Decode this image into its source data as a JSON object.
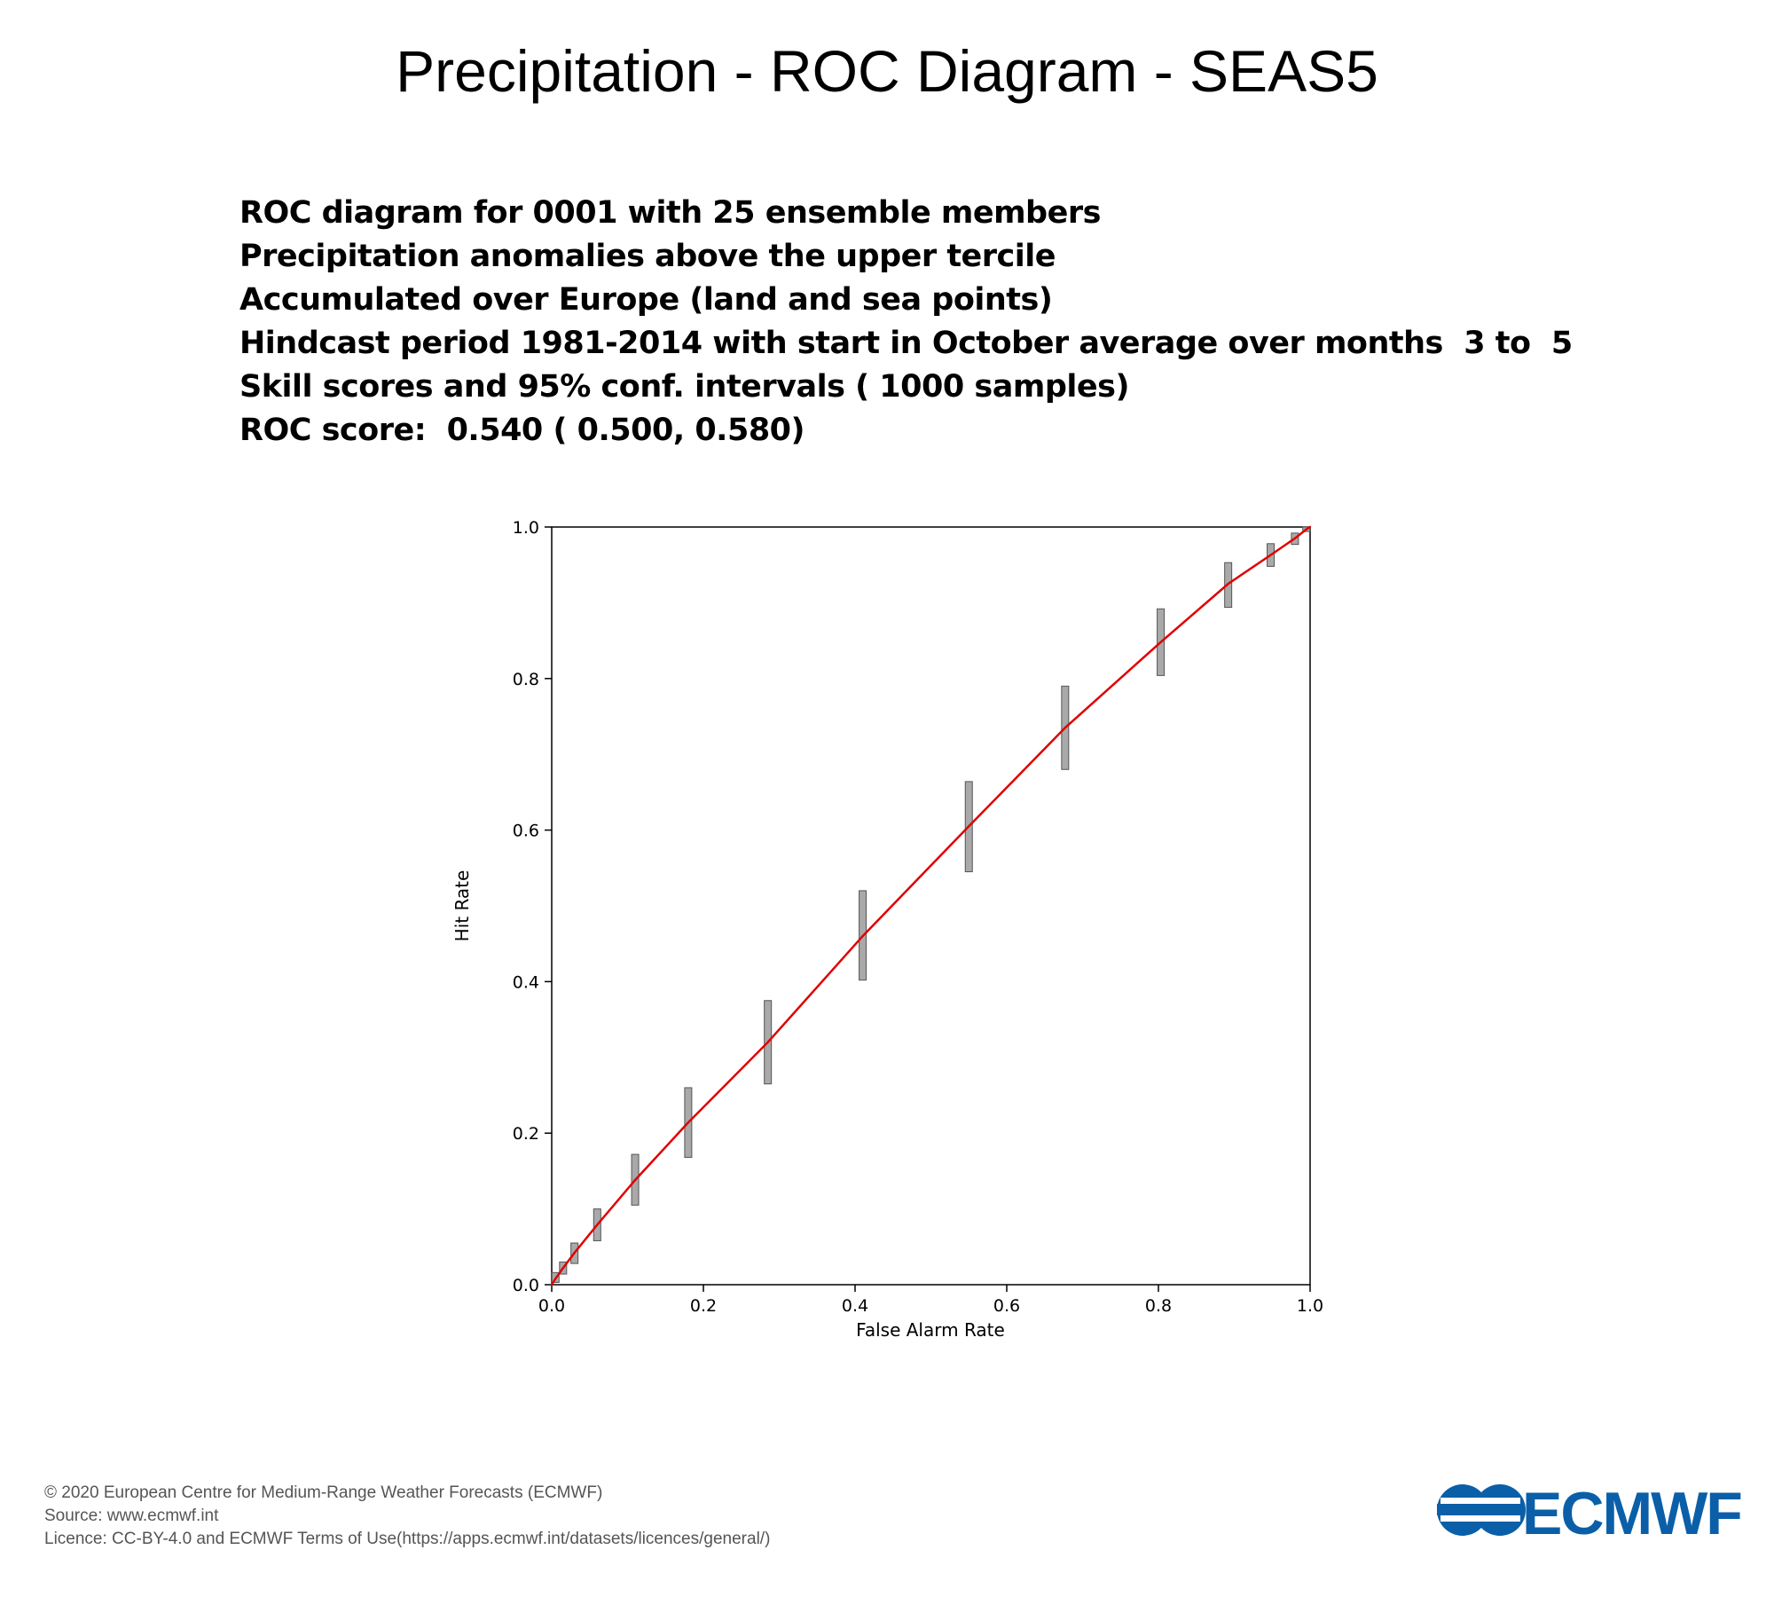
{
  "title": "Precipitation - ROC Diagram - SEAS5",
  "description_lines": [
    "ROC diagram for 0001 with 25 ensemble members",
    "Precipitation anomalies above the upper tercile",
    "Accumulated over Europe (land and sea points)",
    "Hindcast period 1981-2014 with start in October average over months  3 to  5",
    "Skill scores and 95% conf. intervals ( 1000 samples)",
    "ROC score:  0.540 ( 0.500, 0.580)"
  ],
  "chart_data": {
    "type": "line",
    "xlabel": "False Alarm Rate",
    "ylabel": "Hit Rate",
    "xlim": [
      0,
      1
    ],
    "ylim": [
      0,
      1
    ],
    "xticks": [
      "0.0",
      "0.2",
      "0.4",
      "0.6",
      "0.8",
      "1.0"
    ],
    "yticks": [
      "0.0",
      "0.2",
      "0.4",
      "0.6",
      "0.8",
      "1.0"
    ],
    "grid": false,
    "line_color": "#e00000",
    "errorbar_color": "#a9a9a9",
    "series": [
      {
        "x": [
          0.0,
          0.005,
          0.015,
          0.03,
          0.06,
          0.11,
          0.18,
          0.285,
          0.41,
          0.55,
          0.677,
          0.803,
          0.892,
          0.948,
          0.98,
          0.995,
          1.0
        ],
        "y": [
          0.0,
          0.008,
          0.022,
          0.042,
          0.079,
          0.138,
          0.214,
          0.32,
          0.46,
          0.605,
          0.735,
          0.848,
          0.925,
          0.963,
          0.985,
          0.997,
          1.0
        ],
        "y_low": [
          null,
          0.003,
          0.014,
          0.028,
          0.058,
          0.105,
          0.168,
          0.265,
          0.402,
          0.545,
          0.68,
          0.804,
          0.894,
          0.948,
          0.977,
          0.994,
          null
        ],
        "y_high": [
          null,
          0.016,
          0.03,
          0.055,
          0.1,
          0.172,
          0.26,
          0.375,
          0.52,
          0.664,
          0.79,
          0.892,
          0.953,
          0.978,
          0.992,
          1.0,
          null
        ]
      }
    ]
  },
  "footer": {
    "copyright": "© 2020 European Centre for Medium-Range Weather Forecasts (ECMWF)",
    "source": "Source: www.ecmwf.int",
    "licence": "Licence: CC-BY-4.0 and ECMWF Terms of Use(https://apps.ecmwf.int/datasets/licences/general/)"
  },
  "logo": {
    "text": "ECMWF",
    "color": "#0a5fa8"
  }
}
